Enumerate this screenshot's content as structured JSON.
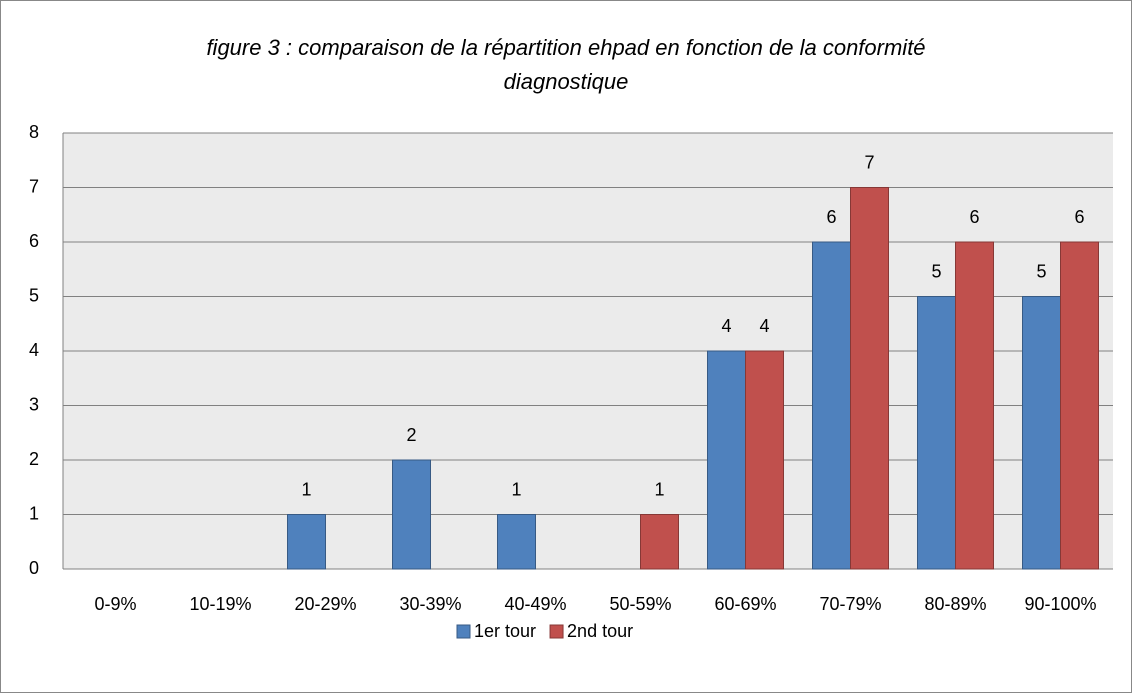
{
  "chart_data": {
    "type": "bar",
    "title": "figure 3 : comparaison de la répartition ehpad en fonction de la conformité diagnostique",
    "categories": [
      "0-9%",
      "10-19%",
      "20-29%",
      "30-39%",
      "40-49%",
      "50-59%",
      "60-69%",
      "70-79%",
      "80-89%",
      "90-100%"
    ],
    "series": [
      {
        "name": "1er tour",
        "color": "#4f81bd",
        "values": [
          null,
          null,
          1,
          2,
          1,
          null,
          4,
          6,
          5,
          5
        ]
      },
      {
        "name": "2nd tour",
        "color": "#c0504d",
        "values": [
          null,
          null,
          null,
          null,
          null,
          1,
          4,
          7,
          6,
          6
        ]
      }
    ],
    "ylim": [
      0,
      8
    ],
    "yticks": [
      0,
      1,
      2,
      3,
      4,
      5,
      6,
      7,
      8
    ],
    "grid": true,
    "legend": "bottom"
  }
}
